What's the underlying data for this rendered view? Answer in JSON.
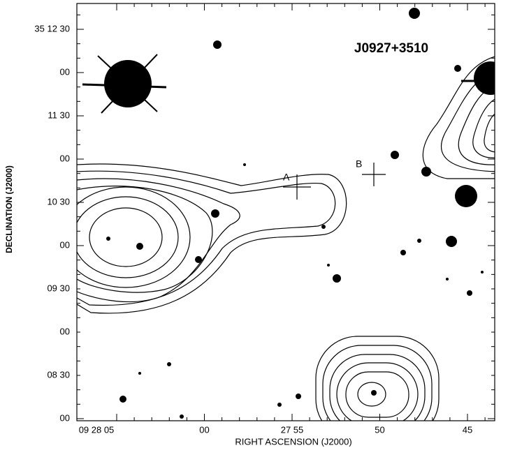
{
  "title": "J0927+3510",
  "x_axis": {
    "label": "RIGHT ASCENSION (J2000)",
    "ticks": [
      "09 28 05",
      "00",
      "27 55",
      "50",
      "45"
    ]
  },
  "y_axis": {
    "label": "DECLINATION (J2000)",
    "ticks": [
      "35 12 30",
      "00",
      "11 30",
      "00",
      "10 30",
      "00",
      "09 30",
      "00",
      "08 30",
      "00"
    ]
  },
  "markers": [
    "A",
    "B"
  ]
}
